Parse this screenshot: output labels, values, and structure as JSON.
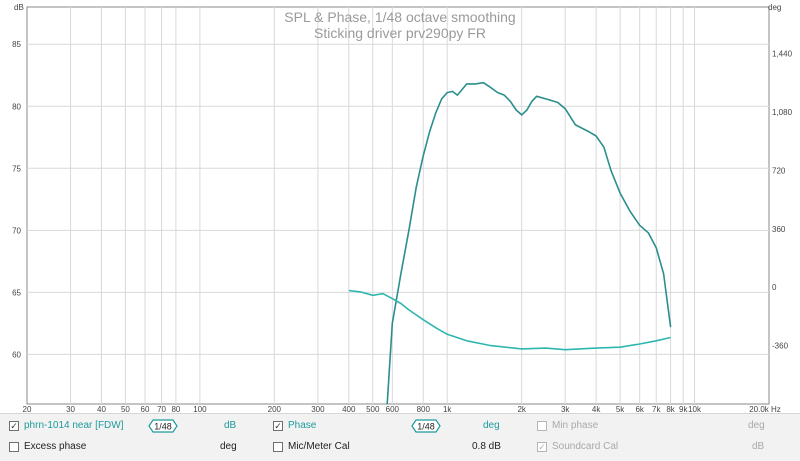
{
  "title_line1": "SPL & Phase, 1/48 octave smoothing",
  "title_line2": "Sticking driver prv290py FR",
  "y_left_unit": "dB",
  "y_right_unit": "deg",
  "x_unit": "Hz",
  "colors": {
    "spl": "#2a8f8c",
    "phase": "#2fb6b1",
    "grid": "#d9d9d9",
    "legend_text_teal": "#1f9a9c"
  },
  "legend": {
    "row1": {
      "spl_label": "phrn-1014 near [FDW]",
      "spl_smoothing": "1/48",
      "spl_unit": "dB",
      "phase_label": "Phase",
      "phase_smoothing": "1/48",
      "phase_unit": "deg",
      "minphase_label": "Min phase",
      "minphase_unit": "deg"
    },
    "row2": {
      "excess_label": "Excess phase",
      "excess_unit": "deg",
      "mic_label": "Mic/Meter Cal",
      "mic_value": "0.8 dB",
      "soundcard_label": "Soundcard Cal",
      "soundcard_unit": "dB"
    }
  },
  "chart_data": {
    "type": "line",
    "title": "SPL & Phase, 1/48 octave smoothing",
    "subtitle": "Sticking driver prv290py FR",
    "x_scale": "log",
    "xlim": [
      20,
      20000
    ],
    "x_ticks": [
      20,
      30,
      40,
      50,
      60,
      70,
      80,
      100,
      200,
      300,
      400,
      500,
      600,
      800,
      1000,
      2000,
      3000,
      4000,
      5000,
      6000,
      7000,
      8000,
      9000,
      10000,
      20000
    ],
    "x_tick_labels": [
      "20",
      "30",
      "40",
      "50",
      "60",
      "70",
      "80",
      "100",
      "200",
      "300",
      "400",
      "500",
      "600",
      "800",
      "1k",
      "2k",
      "3k",
      "4k",
      "5k",
      "6k",
      "7k",
      "8k",
      "9k",
      "10k",
      "20.0k Hz"
    ],
    "ylim_left": [
      56,
      88
    ],
    "y_left_ticks": [
      60,
      65,
      70,
      75,
      80,
      85
    ],
    "ylim_right": [
      -720,
      1728
    ],
    "y_right_ticks": [
      -360,
      0,
      360,
      720,
      1080,
      1440
    ],
    "y_right_tick_labels": [
      "-360",
      "0",
      "360",
      "720",
      "1,080",
      "1,440"
    ],
    "grid": true,
    "series": [
      {
        "name": "phrn-1014 near [FDW]",
        "axis": "left",
        "x": [
          570,
          600,
          650,
          700,
          750,
          800,
          850,
          900,
          950,
          1000,
          1050,
          1100,
          1200,
          1300,
          1400,
          1500,
          1600,
          1700,
          1800,
          1900,
          2000,
          2100,
          2200,
          2300,
          2400,
          2600,
          2800,
          3000,
          3300,
          3700,
          4000,
          4300,
          4600,
          5000,
          5500,
          6000,
          6500,
          7000,
          7500,
          8000
        ],
        "values": [
          55.5,
          62.5,
          66.5,
          70.0,
          73.5,
          76.0,
          78.0,
          79.5,
          80.6,
          81.1,
          81.2,
          80.9,
          81.8,
          81.8,
          81.9,
          81.5,
          81.1,
          80.9,
          80.4,
          79.7,
          79.3,
          79.7,
          80.4,
          80.8,
          80.7,
          80.5,
          80.3,
          79.8,
          78.5,
          78.0,
          77.6,
          76.7,
          74.8,
          73.0,
          71.5,
          70.4,
          69.8,
          68.6,
          66.5,
          62.2
        ]
      },
      {
        "name": "Phase",
        "axis": "right",
        "x": [
          400,
          450,
          500,
          550,
          600,
          650,
          700,
          800,
          900,
          1000,
          1200,
          1500,
          2000,
          2500,
          3000,
          4000,
          5000,
          6000,
          7000,
          8000
        ],
        "values": [
          -20,
          -30,
          -50,
          -40,
          -70,
          -100,
          -140,
          -200,
          -250,
          -290,
          -330,
          -360,
          -380,
          -375,
          -385,
          -375,
          -370,
          -350,
          -330,
          -310
        ]
      }
    ]
  }
}
